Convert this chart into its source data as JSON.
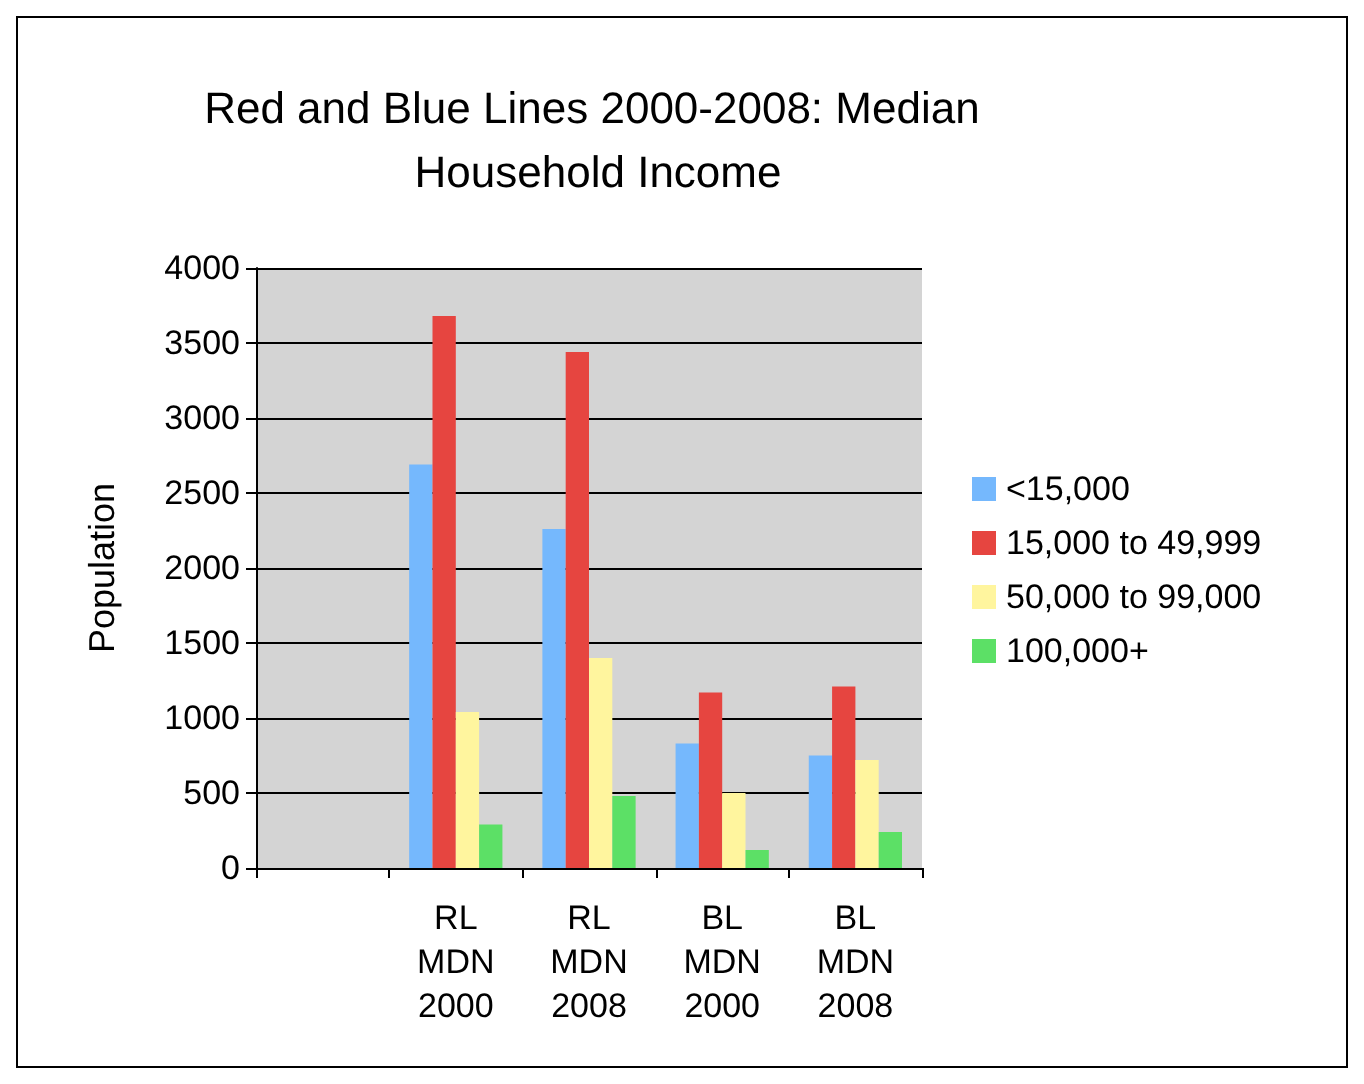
{
  "chart_data": {
    "type": "bar",
    "title": "Red and Blue Lines 2000-2008: Median Household Income",
    "ylabel": "Population",
    "categories": [
      null,
      "RL\nMDN\n2000",
      "RL\nMDN\n2008",
      "BL\nMDN\n2000",
      "BL\nMDN\n2008"
    ],
    "series": [
      {
        "name": "<15,000",
        "color": "#75b8fd",
        "values": [
          null,
          2690,
          2260,
          830,
          750
        ]
      },
      {
        "name": "15,000 to 49,999",
        "color": "#e64540",
        "values": [
          null,
          3680,
          3440,
          1170,
          1210
        ]
      },
      {
        "name": "50,000 to 99,000",
        "color": "#fff59e",
        "values": [
          null,
          1040,
          1400,
          500,
          720
        ]
      },
      {
        "name": "100,000+",
        "color": "#5ce066",
        "values": [
          null,
          290,
          480,
          120,
          240
        ]
      }
    ],
    "ylim": [
      0,
      4000
    ],
    "yticks": [
      0,
      500,
      1000,
      1500,
      2000,
      2500,
      3000,
      3500,
      4000
    ],
    "grid": "y",
    "legend": "right"
  }
}
